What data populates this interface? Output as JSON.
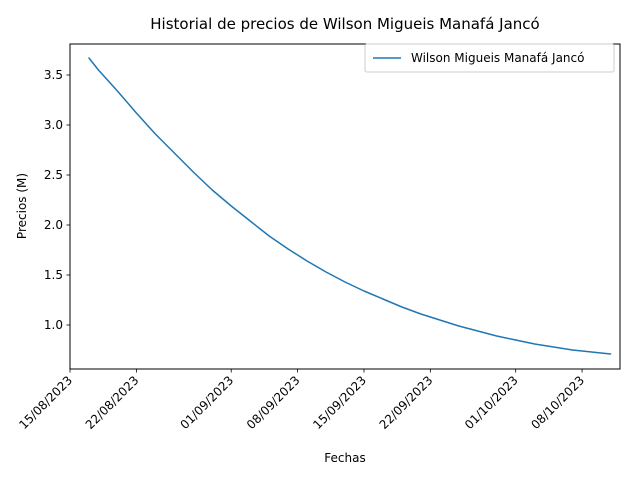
{
  "chart_data": {
    "type": "line",
    "title": "Historial de precios de Wilson Migueis Manafá Jancó",
    "xlabel": "Fechas",
    "ylabel": "Precios (M)",
    "x_axis_type": "date",
    "xlim": [
      "2023-08-15",
      "2023-10-12"
    ],
    "ylim": [
      0.56,
      3.81
    ],
    "x_ticks": [
      {
        "date": "2023-08-15",
        "label": "15/08/2023"
      },
      {
        "date": "2023-08-22",
        "label": "22/08/2023"
      },
      {
        "date": "2023-09-01",
        "label": "01/09/2023"
      },
      {
        "date": "2023-09-08",
        "label": "08/09/2023"
      },
      {
        "date": "2023-09-15",
        "label": "15/09/2023"
      },
      {
        "date": "2023-09-22",
        "label": "22/09/2023"
      },
      {
        "date": "2023-10-01",
        "label": "01/10/2023"
      },
      {
        "date": "2023-10-08",
        "label": "08/10/2023"
      }
    ],
    "y_ticks": [
      {
        "value": 1.0,
        "label": "1.0"
      },
      {
        "value": 1.5,
        "label": "1.5"
      },
      {
        "value": 2.0,
        "label": "2.0"
      },
      {
        "value": 2.5,
        "label": "2.5"
      },
      {
        "value": 3.0,
        "label": "3.0"
      },
      {
        "value": 3.5,
        "label": "3.5"
      }
    ],
    "grid": false,
    "legend": {
      "position": "top-right"
    },
    "series": [
      {
        "name": "Wilson Migueis Manafá Jancó",
        "color": "#1f77b4",
        "x": [
          "2023-08-17",
          "2023-08-18",
          "2023-08-20",
          "2023-08-22",
          "2023-08-24",
          "2023-08-26",
          "2023-08-28",
          "2023-08-30",
          "2023-09-01",
          "2023-09-03",
          "2023-09-05",
          "2023-09-07",
          "2023-09-09",
          "2023-09-11",
          "2023-09-13",
          "2023-09-15",
          "2023-09-17",
          "2023-09-19",
          "2023-09-21",
          "2023-09-23",
          "2023-09-25",
          "2023-09-27",
          "2023-09-29",
          "2023-10-01",
          "2023-10-03",
          "2023-10-05",
          "2023-10-07",
          "2023-10-09",
          "2023-10-11"
        ],
        "y": [
          3.67,
          3.55,
          3.34,
          3.12,
          2.91,
          2.72,
          2.53,
          2.35,
          2.19,
          2.04,
          1.89,
          1.76,
          1.64,
          1.53,
          1.43,
          1.34,
          1.26,
          1.18,
          1.11,
          1.05,
          0.99,
          0.94,
          0.89,
          0.85,
          0.81,
          0.78,
          0.75,
          0.73,
          0.71
        ]
      }
    ]
  }
}
